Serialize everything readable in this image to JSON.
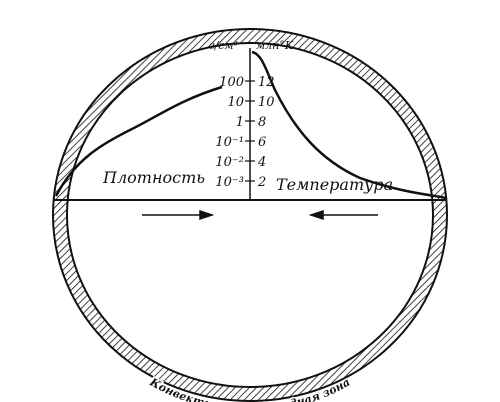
{
  "diagram": {
    "density_unit": "г/см³",
    "temperature_unit": "млн°К",
    "density_ticks": [
      "100",
      "10",
      "1",
      "10⁻¹",
      "10⁻²",
      "10⁻³"
    ],
    "temperature_ticks": [
      "12",
      "10",
      "8",
      "6",
      "4",
      "2"
    ],
    "density_label": "Плотность",
    "temperature_label": "Температура",
    "zone_label": "Конвективная водородная зона"
  }
}
